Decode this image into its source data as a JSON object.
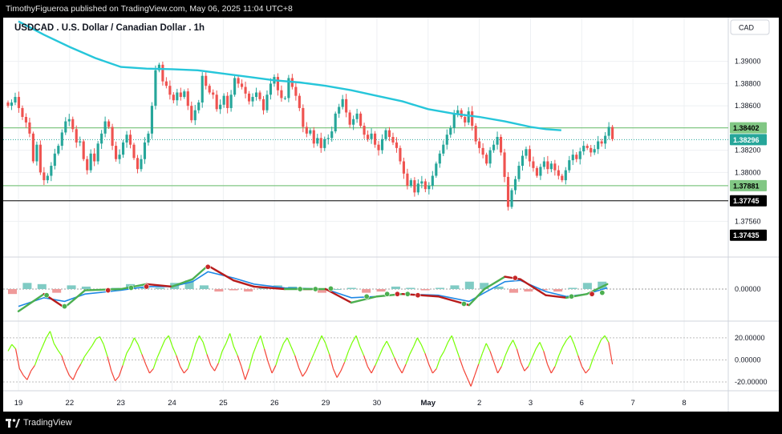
{
  "header": {
    "published_line": "TimothyFigueroa published on TradingView.com, May 06, 2025 11:04 UTC+8"
  },
  "footer": {
    "brand": "TradingView"
  },
  "chart_data": {
    "type": "candlestick",
    "title": "USDCAD . U.S. Dollar / Canadian Dollar . 1h",
    "currency": "CAD",
    "grid": true,
    "colors": {
      "up": "#26a69a",
      "down": "#ef5350",
      "ma": "#26c6da",
      "support": "#81c784",
      "line_black": "#000000",
      "macd_fast": "#4caf50",
      "macd_slow": "#1e88e5",
      "macd_red": "#b71c1c",
      "osc_up": "#76ff03",
      "osc_down": "#f44336"
    },
    "price": {
      "ylim": [
        1.3726,
        1.3925
      ],
      "ticks": [
        "1.39000",
        "1.38800",
        "1.38600",
        "1.38200",
        "1.38000",
        "1.37560"
      ],
      "levels": [
        {
          "value": 1.38402,
          "label": "1.38402",
          "style": "support"
        },
        {
          "value": 1.38296,
          "label": "1.38296",
          "style": "last"
        },
        {
          "value": 1.37881,
          "label": "1.37881",
          "style": "support"
        },
        {
          "value": 1.37745,
          "label": "1.37745",
          "style": "black"
        },
        {
          "value": 1.37435,
          "label": "1.37435",
          "style": "dark"
        }
      ],
      "ma_path": [
        [
          0,
          1.3936
        ],
        [
          0.5,
          1.3924
        ],
        [
          1,
          1.3913
        ],
        [
          1.5,
          1.3903
        ],
        [
          2,
          1.3895
        ],
        [
          2.5,
          1.38935
        ],
        [
          3,
          1.3893
        ],
        [
          3.5,
          1.3892
        ],
        [
          4,
          1.3889
        ],
        [
          4.5,
          1.3886
        ],
        [
          5,
          1.3883
        ],
        [
          5.5,
          1.3881
        ],
        [
          6,
          1.3878
        ],
        [
          6.5,
          1.3874
        ],
        [
          7,
          1.3869
        ],
        [
          7.5,
          1.3864
        ],
        [
          8,
          1.3857
        ],
        [
          8.5,
          1.3853
        ],
        [
          9,
          1.385
        ],
        [
          9.5,
          1.3846
        ],
        [
          10,
          1.3841
        ],
        [
          10.3,
          1.3839
        ],
        [
          10.6,
          1.3838
        ]
      ],
      "closes": [
        1.386,
        1.3863,
        1.3868,
        1.3858,
        1.385,
        1.3845,
        1.3835,
        1.381,
        1.3825,
        1.38,
        1.3793,
        1.3797,
        1.3806,
        1.3817,
        1.3824,
        1.3836,
        1.3846,
        1.3848,
        1.3839,
        1.3827,
        1.3828,
        1.3812,
        1.3802,
        1.3817,
        1.381,
        1.3826,
        1.3835,
        1.3846,
        1.3841,
        1.3824,
        1.3812,
        1.3816,
        1.3827,
        1.3834,
        1.3825,
        1.3813,
        1.3803,
        1.3812,
        1.3827,
        1.3835,
        1.386,
        1.3892,
        1.3897,
        1.3882,
        1.3878,
        1.387,
        1.3865,
        1.3872,
        1.3868,
        1.3873,
        1.386,
        1.3847,
        1.3856,
        1.3863,
        1.3887,
        1.3878,
        1.3872,
        1.387,
        1.3857,
        1.3861,
        1.3869,
        1.3858,
        1.387,
        1.3885,
        1.388,
        1.3877,
        1.3871,
        1.3864,
        1.3868,
        1.3872,
        1.3866,
        1.3856,
        1.387,
        1.388,
        1.3886,
        1.3874,
        1.3867,
        1.3867,
        1.3885,
        1.3877,
        1.3869,
        1.3858,
        1.3841,
        1.3835,
        1.3838,
        1.3826,
        1.3831,
        1.3822,
        1.383,
        1.3831,
        1.3837,
        1.3853,
        1.3859,
        1.3866,
        1.3854,
        1.3843,
        1.3848,
        1.3853,
        1.3842,
        1.3834,
        1.383,
        1.3835,
        1.3825,
        1.382,
        1.383,
        1.3838,
        1.3832,
        1.3827,
        1.3822,
        1.381,
        1.3799,
        1.3788,
        1.3793,
        1.3782,
        1.379,
        1.3792,
        1.3785,
        1.3788,
        1.3797,
        1.3808,
        1.3817,
        1.3825,
        1.3834,
        1.384,
        1.3853,
        1.3856,
        1.385,
        1.3845,
        1.3855,
        1.3842,
        1.3828,
        1.3822,
        1.3816,
        1.3808,
        1.382,
        1.3825,
        1.3832,
        1.3818,
        1.3796,
        1.3769,
        1.3784,
        1.3794,
        1.3806,
        1.3815,
        1.3821,
        1.381,
        1.3804,
        1.3797,
        1.3805,
        1.381,
        1.3803,
        1.3808,
        1.3802,
        1.3797,
        1.3793,
        1.3802,
        1.3811,
        1.3816,
        1.3812,
        1.3819,
        1.3824,
        1.3822,
        1.3818,
        1.3821,
        1.3828,
        1.3826,
        1.3833,
        1.3841,
        1.383
      ]
    },
    "xaxis": {
      "ticks": [
        {
          "label": "19",
          "x": 0
        },
        {
          "label": "22",
          "x": 1
        },
        {
          "label": "23",
          "x": 2
        },
        {
          "label": "24",
          "x": 3
        },
        {
          "label": "25",
          "x": 4
        },
        {
          "label": "26",
          "x": 5
        },
        {
          "label": "29",
          "x": 6
        },
        {
          "label": "30",
          "x": 7
        },
        {
          "label": "May",
          "x": 8
        },
        {
          "label": "2",
          "x": 9
        },
        {
          "label": "3",
          "x": 10
        },
        {
          "label": "6",
          "x": 11
        },
        {
          "label": "7",
          "x": 12
        },
        {
          "label": "8",
          "x": 13
        }
      ]
    },
    "macd": {
      "ylim": [
        -1.2,
        1.2
      ],
      "ticks": [
        "0.00000"
      ],
      "fast": [
        [
          0,
          -0.9
        ],
        [
          0.5,
          -0.2
        ],
        [
          0.9,
          -0.75
        ],
        [
          1.3,
          -0.05
        ],
        [
          2,
          0.0
        ],
        [
          2.5,
          0.2
        ],
        [
          3,
          0.1
        ],
        [
          3.4,
          0.4
        ],
        [
          3.7,
          0.95
        ],
        [
          4.2,
          0.35
        ],
        [
          4.6,
          0.1
        ],
        [
          5.2,
          0.0
        ],
        [
          6,
          0.0
        ],
        [
          6.5,
          -0.55
        ],
        [
          7,
          -0.3
        ],
        [
          7.5,
          -0.2
        ],
        [
          8.2,
          -0.3
        ],
        [
          8.8,
          -0.65
        ],
        [
          9.1,
          0.0
        ],
        [
          9.5,
          0.5
        ],
        [
          9.8,
          0.4
        ],
        [
          10.3,
          -0.25
        ],
        [
          10.7,
          -0.35
        ],
        [
          11.1,
          -0.2
        ],
        [
          11.5,
          0.2
        ]
      ],
      "slow": [
        [
          0,
          -0.7
        ],
        [
          0.5,
          -0.35
        ],
        [
          0.9,
          -0.5
        ],
        [
          1.3,
          -0.2
        ],
        [
          2,
          -0.05
        ],
        [
          2.5,
          0.1
        ],
        [
          3,
          0.1
        ],
        [
          3.4,
          0.3
        ],
        [
          3.7,
          0.7
        ],
        [
          4.2,
          0.45
        ],
        [
          4.6,
          0.2
        ],
        [
          5.2,
          0.05
        ],
        [
          6,
          0.0
        ],
        [
          6.5,
          -0.35
        ],
        [
          7,
          -0.3
        ],
        [
          7.5,
          -0.2
        ],
        [
          8.2,
          -0.25
        ],
        [
          8.8,
          -0.5
        ],
        [
          9.1,
          -0.15
        ],
        [
          9.5,
          0.3
        ],
        [
          9.8,
          0.35
        ],
        [
          10.3,
          -0.1
        ],
        [
          10.7,
          -0.3
        ],
        [
          11.1,
          -0.2
        ],
        [
          11.5,
          0.05
        ]
      ],
      "hist": [
        -0.2,
        0.25,
        0.2,
        -0.15,
        0.15,
        0.1,
        -0.05,
        0.05,
        0.2,
        0.1,
        0.05,
        0.25,
        0.35,
        0.15,
        -0.1,
        -0.05,
        -0.1,
        0.05,
        0.15,
        0.1,
        -0.05,
        -0.15,
        0.0,
        0.05,
        -0.15,
        -0.1,
        0.1,
        0.05,
        -0.05,
        0.05,
        0.15,
        0.3,
        0.25,
        0.1,
        -0.15,
        -0.1,
        -0.05,
        -0.1,
        0.05,
        0.25,
        0.3
      ],
      "cross_dots": [
        {
          "x": 0.55,
          "y": -0.25,
          "c": "green"
        },
        {
          "x": 0.9,
          "y": -0.7,
          "c": "green"
        },
        {
          "x": 1.75,
          "y": -0.05,
          "c": "red"
        },
        {
          "x": 2.2,
          "y": 0.05,
          "c": "green"
        },
        {
          "x": 2.5,
          "y": 0.1,
          "c": "red"
        },
        {
          "x": 3.7,
          "y": 0.9,
          "c": "red"
        },
        {
          "x": 5.5,
          "y": 0.0,
          "c": "green"
        },
        {
          "x": 5.8,
          "y": 0.0,
          "c": "green"
        },
        {
          "x": 6.1,
          "y": 0.02,
          "c": "green"
        },
        {
          "x": 6.8,
          "y": -0.3,
          "c": "green"
        },
        {
          "x": 7.2,
          "y": -0.2,
          "c": "green"
        },
        {
          "x": 7.4,
          "y": -0.2,
          "c": "red"
        },
        {
          "x": 7.6,
          "y": -0.2,
          "c": "green"
        },
        {
          "x": 7.8,
          "y": -0.25,
          "c": "red"
        },
        {
          "x": 8.7,
          "y": -0.6,
          "c": "green"
        },
        {
          "x": 9.7,
          "y": 0.45,
          "c": "red"
        },
        {
          "x": 10.8,
          "y": -0.3,
          "c": "green"
        },
        {
          "x": 11.2,
          "y": -0.2,
          "c": "red"
        },
        {
          "x": 11.4,
          "y": -0.15,
          "c": "green"
        }
      ]
    },
    "oscillator": {
      "ylim": [
        -28,
        33
      ],
      "ticks": [
        "20.00000",
        "0.00000",
        "-20.00000"
      ],
      "values": [
        8,
        14,
        10,
        -8,
        -14,
        -18,
        -10,
        -5,
        4,
        12,
        20,
        26,
        15,
        9,
        4,
        -6,
        -14,
        -18,
        -10,
        -4,
        3,
        8,
        13,
        19,
        21,
        14,
        3,
        -10,
        -19,
        -15,
        -5,
        6,
        12,
        20,
        14,
        5,
        -4,
        -12,
        -8,
        2,
        10,
        18,
        22,
        12,
        4,
        -6,
        -12,
        -8,
        2,
        14,
        22,
        16,
        5,
        -5,
        -10,
        -3,
        8,
        15,
        24,
        12,
        4,
        -6,
        -18,
        -8,
        5,
        14,
        22,
        10,
        -2,
        -12,
        -5,
        6,
        15,
        20,
        12,
        4,
        -7,
        -15,
        -10,
        -2,
        6,
        14,
        22,
        15,
        5,
        -8,
        -16,
        -10,
        -2,
        8,
        16,
        22,
        12,
        4,
        -6,
        -12,
        -5,
        3,
        11,
        17,
        10,
        2,
        -6,
        -12,
        -4,
        5,
        12,
        20,
        14,
        6,
        -4,
        -12,
        -8,
        2,
        8,
        16,
        22,
        12,
        2,
        -8,
        -16,
        -24,
        -14,
        -4,
        6,
        15,
        8,
        -2,
        -12,
        -6,
        4,
        12,
        18,
        10,
        -2,
        -10,
        -6,
        2,
        10,
        16,
        8,
        -4,
        -12,
        -6,
        4,
        12,
        18,
        22,
        14,
        4,
        -6,
        -12,
        -8,
        2,
        10,
        18,
        22,
        16,
        -4
      ]
    }
  }
}
